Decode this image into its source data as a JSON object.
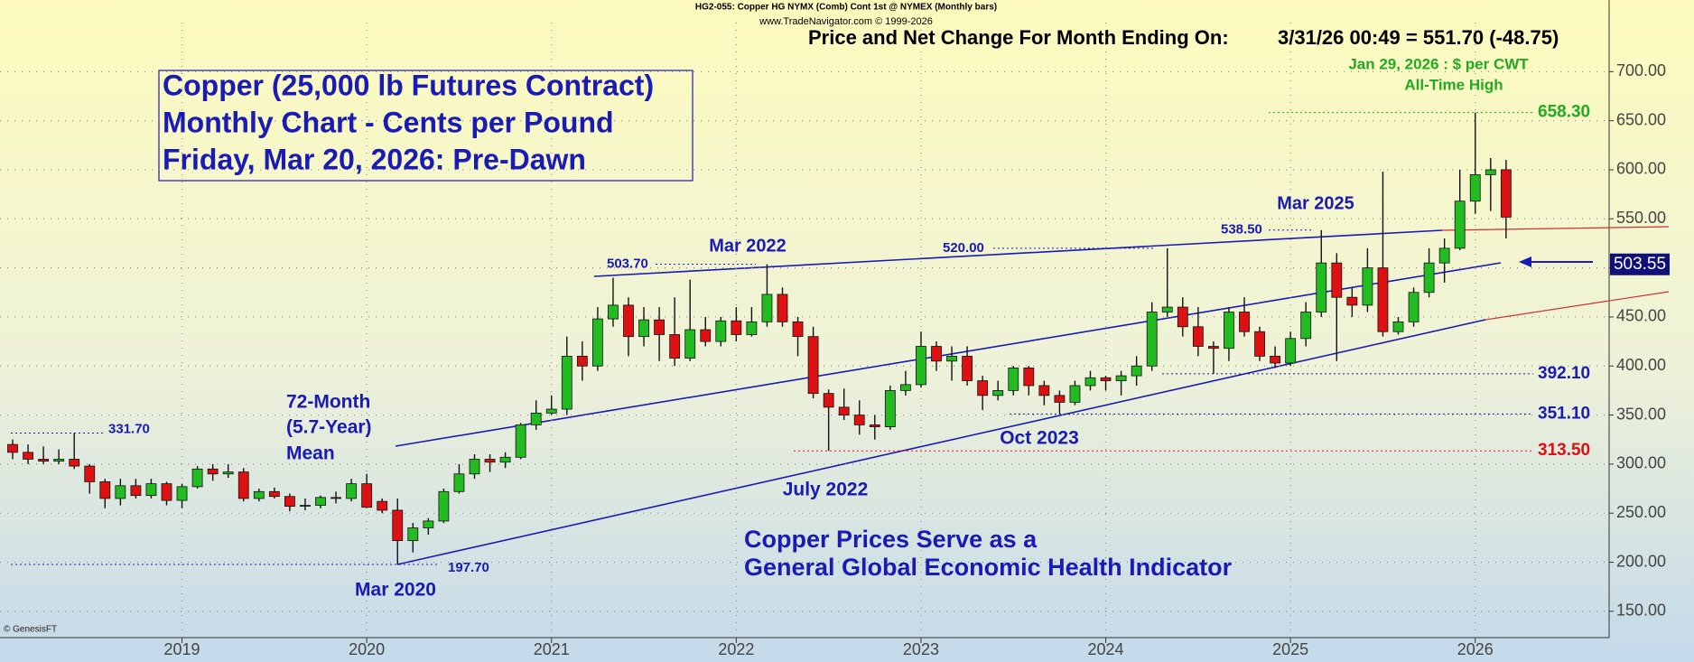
{
  "chart_data": {
    "type": "candlestick",
    "header": "HG2-055:  Copper HG NYMX (Comb) Cont 1st @ NYMEX  (Monthly bars)",
    "subheader": "www.TradeNavigator.com © 1999-2026",
    "status_label": "Price and Net Change For Month Ending On:",
    "status_value": "3/31/26 00:49 = 551.70 (-48.75)",
    "title_lines": [
      "Copper (25,000 lb Futures Contract)",
      "Monthly Chart - Cents per Pound",
      "Friday, Mar 20, 2026: Pre-Dawn"
    ],
    "annotations": [
      "Mar 2022",
      "Mar 2025",
      "July 2022",
      "Oct 2023",
      "Mar 2020",
      "72-Month",
      "(5.7-Year)",
      "Mean",
      "Copper Prices Serve as a",
      "General Global Economic Health Indicator",
      "Jan 29, 2026 : $ per CWT",
      "All-Time High",
      "© GenesisFT"
    ],
    "categories": [
      null,
      null,
      null,
      null,
      null,
      null,
      null,
      null,
      null,
      null,
      null,
      "2019",
      null,
      null,
      null,
      null,
      null,
      null,
      null,
      null,
      null,
      null,
      null,
      "2020",
      null,
      null,
      null,
      null,
      null,
      null,
      null,
      null,
      null,
      null,
      null,
      "2021",
      null,
      null,
      null,
      null,
      null,
      null,
      null,
      null,
      null,
      null,
      null,
      "2022",
      null,
      null,
      null,
      null,
      null,
      null,
      null,
      null,
      null,
      null,
      null,
      "2023",
      null,
      null,
      null,
      null,
      null,
      null,
      null,
      null,
      null,
      null,
      null,
      "2024",
      null,
      null,
      null,
      null,
      null,
      null,
      null,
      null,
      null,
      null,
      null,
      "2025",
      null,
      null,
      null,
      null,
      null,
      null,
      null,
      null,
      null,
      null,
      null,
      "2026",
      null,
      null
    ],
    "open": [
      320,
      312,
      305,
      303,
      305,
      298,
      282,
      265,
      278,
      268,
      280,
      263,
      277,
      295,
      290,
      292,
      265,
      272,
      267,
      257,
      258,
      266,
      265,
      280,
      262,
      253,
      222,
      235,
      242,
      272,
      290,
      305,
      302,
      307,
      340,
      352,
      356,
      410,
      400,
      448,
      462,
      430,
      447,
      432,
      408,
      437,
      425,
      446,
      432,
      445,
      473,
      445,
      430,
      372,
      358,
      350,
      340,
      338,
      375,
      381,
      420,
      405,
      410,
      385,
      370,
      375,
      398,
      380,
      370,
      363,
      380,
      388,
      385,
      390,
      400,
      455,
      460,
      440,
      420,
      418,
      455,
      435,
      410,
      403,
      428,
      455,
      505,
      470,
      462,
      500,
      435,
      445,
      475,
      505,
      520,
      568,
      595,
      600
    ],
    "high": [
      325,
      320,
      318,
      315,
      331.7,
      300,
      285,
      285,
      285,
      285,
      282,
      280,
      298,
      300,
      300,
      296,
      275,
      276,
      270,
      265,
      268,
      272,
      285,
      290,
      265,
      265,
      240,
      245,
      275,
      300,
      310,
      310,
      312,
      342,
      365,
      370,
      430,
      425,
      460,
      490,
      470,
      460,
      460,
      470,
      488,
      450,
      450,
      460,
      460,
      503.7,
      480,
      450,
      440,
      376,
      377,
      365,
      350,
      380,
      395,
      435,
      425,
      420,
      420,
      390,
      385,
      400,
      400,
      385,
      375,
      385,
      395,
      390,
      395,
      410,
      465,
      520,
      470,
      460,
      425,
      460,
      470,
      440,
      420,
      435,
      465,
      538.5,
      515,
      480,
      520,
      598,
      450,
      480,
      520,
      530,
      600,
      658.3,
      612,
      610
    ],
    "low": [
      305,
      300,
      300,
      300,
      295,
      270,
      255,
      258,
      265,
      265,
      258,
      255,
      275,
      283,
      286,
      262,
      262,
      265,
      252,
      253,
      255,
      260,
      262,
      255,
      250,
      197.7,
      210,
      228,
      240,
      270,
      285,
      292,
      296,
      305,
      335,
      350,
      350,
      385,
      395,
      440,
      410,
      420,
      405,
      400,
      405,
      420,
      420,
      425,
      430,
      440,
      440,
      410,
      367,
      313.5,
      345,
      330,
      325,
      335,
      370,
      378,
      395,
      385,
      380,
      355,
      365,
      370,
      370,
      360,
      351.1,
      360,
      375,
      375,
      370,
      380,
      395,
      450,
      430,
      410,
      392.1,
      405,
      430,
      405,
      398,
      400,
      420,
      450,
      405,
      450,
      455,
      430,
      432,
      440,
      470,
      485,
      518,
      555,
      558,
      530
    ],
    "close": [
      312,
      305,
      303,
      305,
      298,
      282,
      265,
      278,
      268,
      280,
      263,
      277,
      295,
      290,
      292,
      265,
      272,
      267,
      257,
      258,
      266,
      265,
      280,
      256,
      253,
      222,
      235,
      242,
      272,
      290,
      305,
      302,
      307,
      340,
      352,
      356,
      410,
      400,
      448,
      462,
      430,
      447,
      432,
      408,
      437,
      425,
      446,
      432,
      445,
      473,
      445,
      430,
      372,
      358,
      350,
      340,
      338,
      375,
      381,
      420,
      405,
      410,
      385,
      370,
      375,
      398,
      380,
      370,
      363,
      380,
      388,
      385,
      390,
      400,
      455,
      460,
      440,
      420,
      418,
      455,
      435,
      410,
      403,
      428,
      455,
      505,
      470,
      462,
      500,
      435,
      445,
      475,
      505,
      520,
      568,
      595,
      600,
      551.7
    ],
    "up_color": "#22bb22",
    "down_color": "#dd1111",
    "ylim": [
      125,
      750
    ],
    "yticks": [
      {
        "value": 150,
        "label": "150.00"
      },
      {
        "value": 200,
        "label": "200.00"
      },
      {
        "value": 250,
        "label": "250.00"
      },
      {
        "value": 300,
        "label": "300.00"
      },
      {
        "value": 350,
        "label": "350.00"
      },
      {
        "value": 400,
        "label": "400.00"
      },
      {
        "value": 450,
        "label": "450.00"
      },
      {
        "value": 500,
        "label": "500.00"
      },
      {
        "value": 550,
        "label": "550.00"
      },
      {
        "value": 600,
        "label": "600.00"
      },
      {
        "value": 650,
        "label": "650.00"
      },
      {
        "value": 700,
        "label": "700.00"
      }
    ],
    "grid": true,
    "levels": [
      {
        "value": 331.7,
        "label": "331.70",
        "color": "#1a1ab4"
      },
      {
        "value": 197.7,
        "label": "197.70",
        "color": "#1a1ab4"
      },
      {
        "value": 503.7,
        "label": "503.70",
        "color": "#1a1ab4"
      },
      {
        "value": 520,
        "label": "520.00",
        "color": "#1a1ab4"
      },
      {
        "value": 538.5,
        "label": "538.50",
        "color": "#1a1ab4"
      },
      {
        "value": 658.3,
        "label": "658.30",
        "color": "#22aa22"
      },
      {
        "value": 392.1,
        "label": "392.10",
        "color": "#1a1ab4"
      },
      {
        "value": 351.1,
        "label": "351.10",
        "color": "#1a1ab4"
      },
      {
        "value": 313.5,
        "label": "313.50",
        "color": "#dd1111"
      }
    ],
    "marker": {
      "value": 503.55,
      "label": "503.55"
    }
  }
}
